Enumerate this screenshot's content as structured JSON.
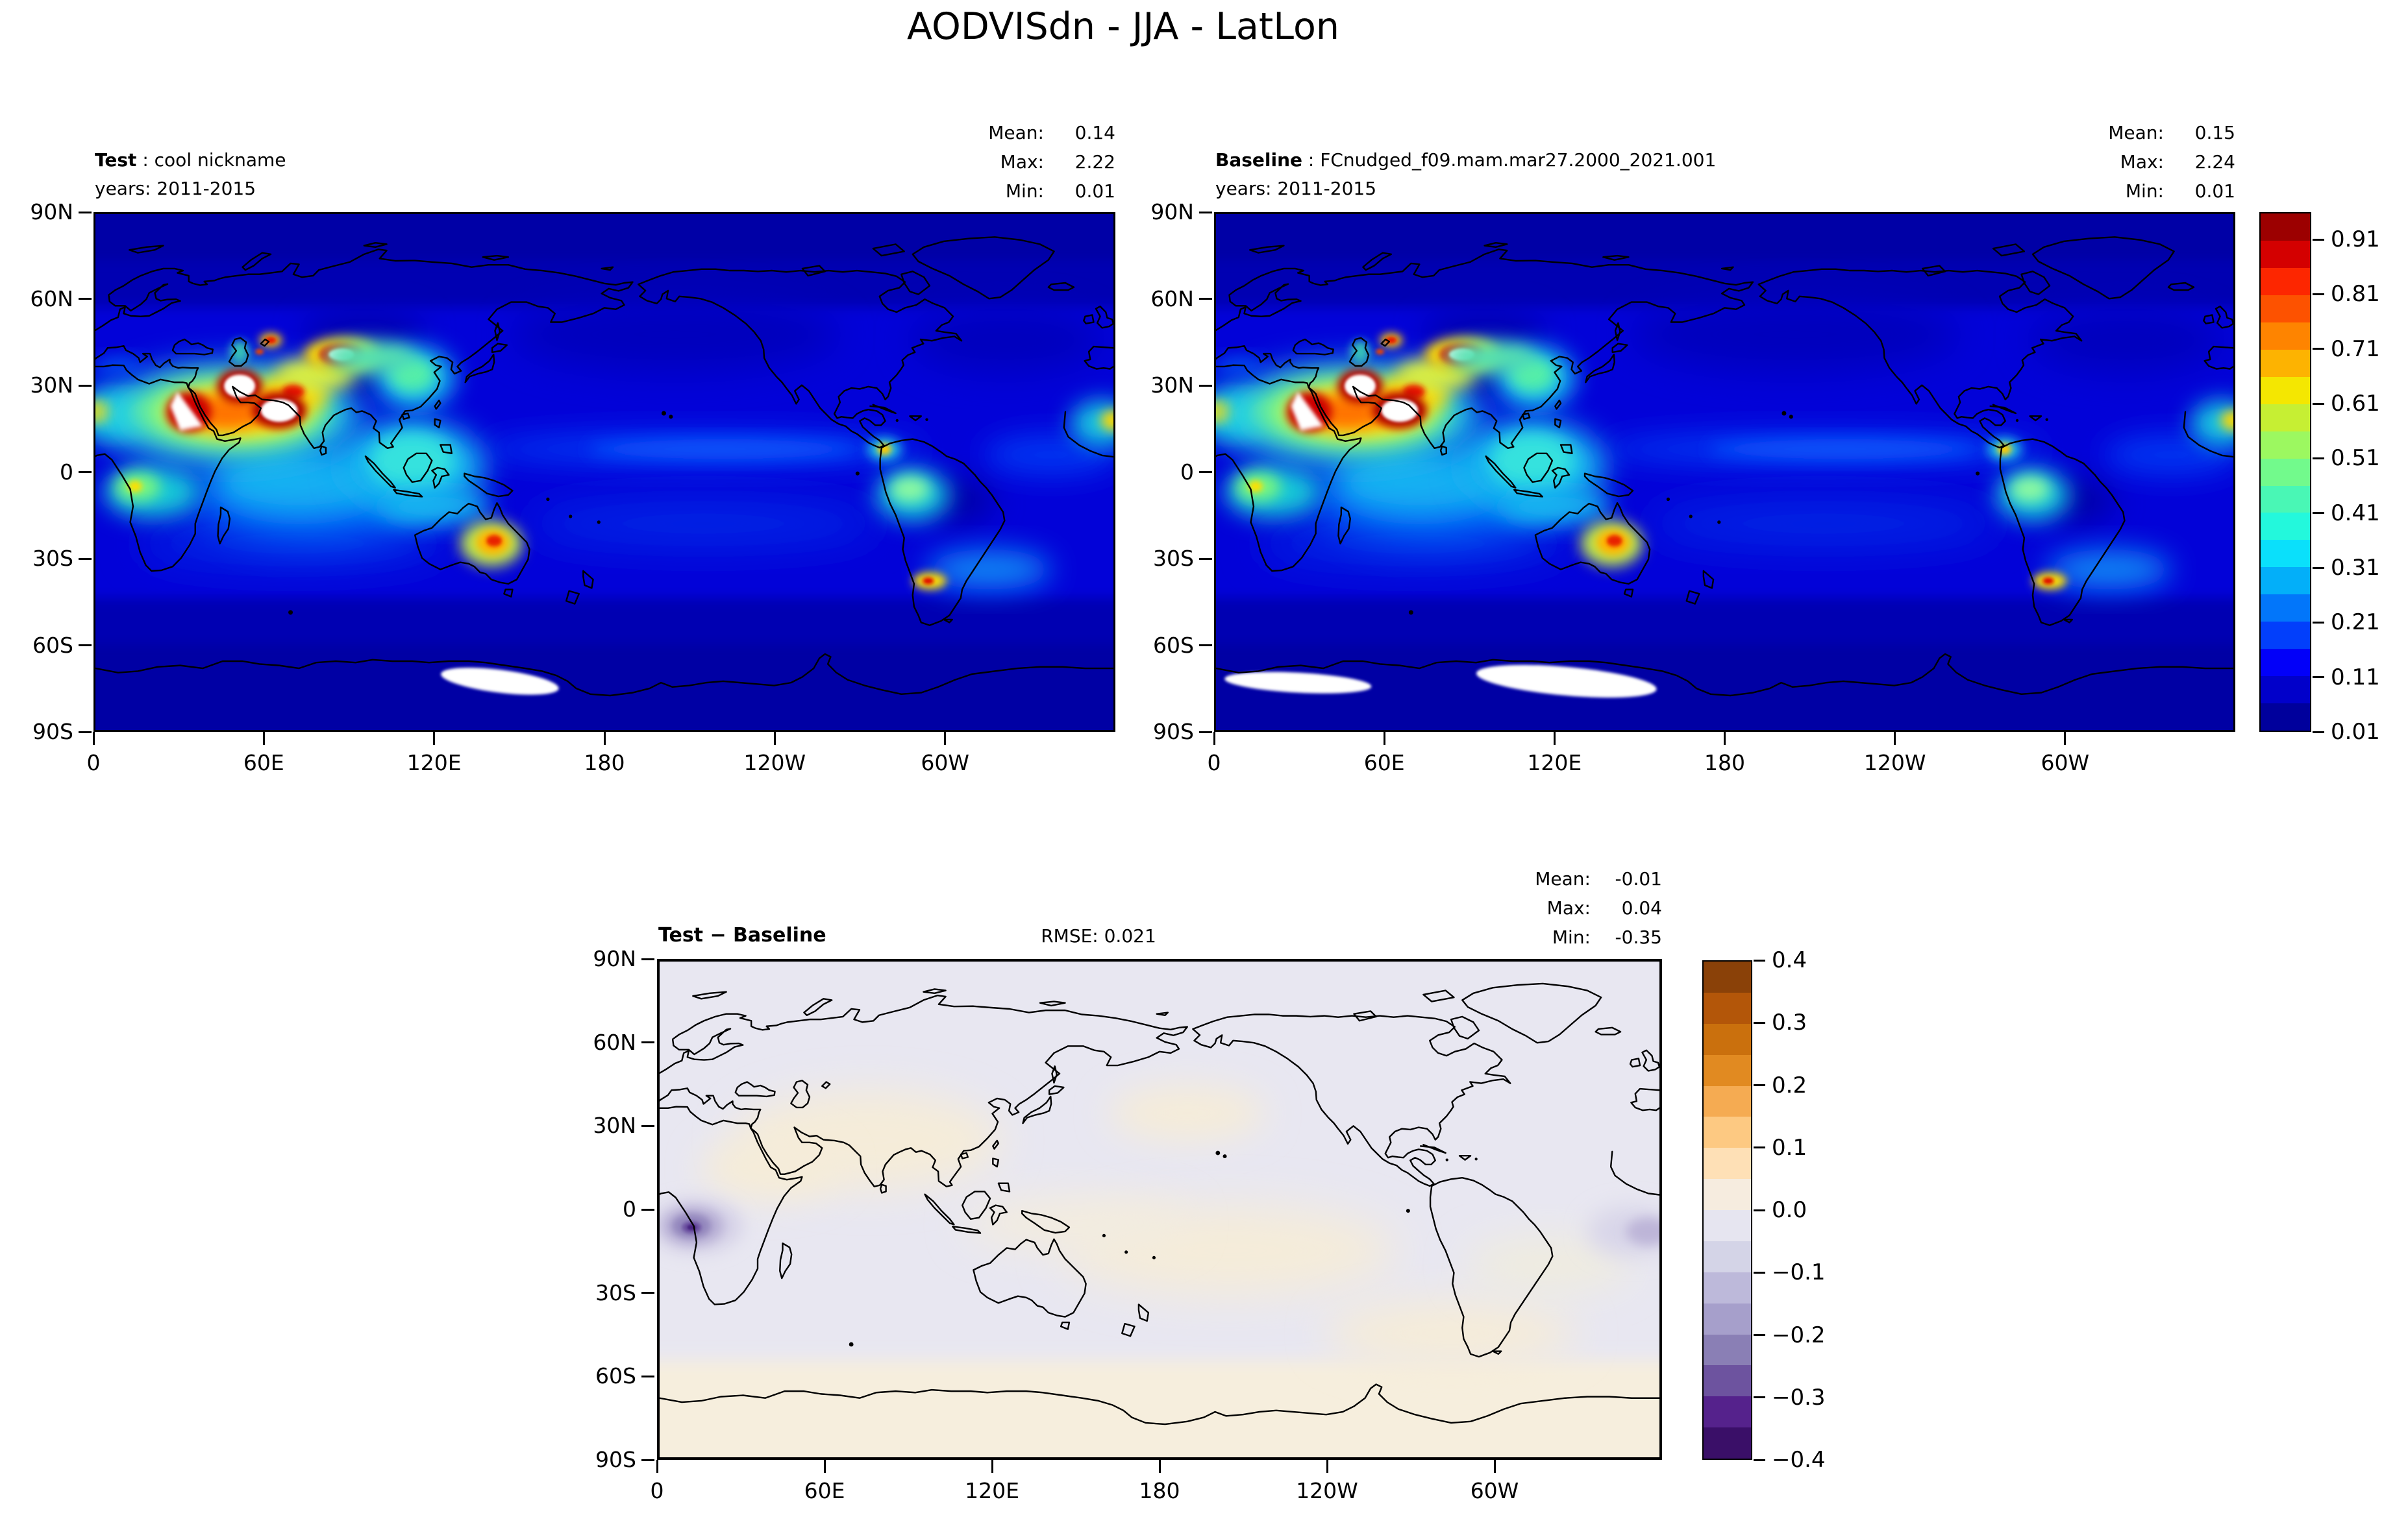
{
  "title": "AODVISdn - JJA - LatLon",
  "axis": {
    "lon_ticks": [
      "0",
      "60E",
      "120E",
      "180",
      "120W",
      "60W"
    ],
    "lat_ticks": [
      "90N",
      "60N",
      "30N",
      "0",
      "30S",
      "60S",
      "90S"
    ]
  },
  "panels": {
    "test": {
      "label": "Test",
      "sep": " : ",
      "name": "cool nickname",
      "years": "years: 2011-2015",
      "stats": [
        {
          "k": "Mean:",
          "v": "0.14"
        },
        {
          "k": "Max:",
          "v": "2.22"
        },
        {
          "k": "Min:",
          "v": "0.01"
        }
      ]
    },
    "baseline": {
      "label": "Baseline",
      "sep": " : ",
      "name": "FCnudged_f09.mam.mar27.2000_2021.001",
      "years": "years: 2011-2015",
      "stats": [
        {
          "k": "Mean:",
          "v": "0.15"
        },
        {
          "k": "Max:",
          "v": "2.24"
        },
        {
          "k": "Min:",
          "v": "0.01"
        }
      ]
    },
    "diff": {
      "label": "Test − Baseline",
      "rmse": "RMSE: 0.021",
      "stats": [
        {
          "k": "Mean:",
          "v": "-0.01"
        },
        {
          "k": "Max:",
          "v": "0.04"
        },
        {
          "k": "Min:",
          "v": "-0.35"
        }
      ]
    }
  },
  "colorbars": {
    "aod": {
      "ticks": [
        "0.91",
        "0.81",
        "0.71",
        "0.61",
        "0.51",
        "0.41",
        "0.31",
        "0.21",
        "0.11",
        "0.01"
      ],
      "colors_bottom_to_top": [
        "#00009c",
        "#0100ca",
        "#0200f9",
        "#023ffb",
        "#0276fa",
        "#03aff9",
        "#0ae0fb",
        "#23f8dc",
        "#49f7b5",
        "#72fa8c",
        "#9cf860",
        "#c6ef33",
        "#f4e701",
        "#fdb301",
        "#fe8400",
        "#fd5200",
        "#fd2600",
        "#d40000",
        "#9c0000"
      ]
    },
    "diff": {
      "ticks": [
        "0.4",
        "0.3",
        "0.2",
        "0.1",
        "0.0",
        "−0.1",
        "−0.2",
        "−0.3",
        "−0.4"
      ],
      "colors_bottom_to_top": [
        "#3a0f68",
        "#55228c",
        "#6d539f",
        "#8a7fb5",
        "#a69fcb",
        "#bdb9da",
        "#d4d4e7",
        "#e6e5f0",
        "#f6ecdf",
        "#fee0b6",
        "#fdc982",
        "#f5ab52",
        "#e18a21",
        "#ca700d",
        "#b35609",
        "#8a4108"
      ]
    }
  },
  "chart_data": {
    "type": "heatmap",
    "title": "AODVISdn - JJA - LatLon",
    "variable": "AODVISdn",
    "season": "JJA",
    "projection": "LatLon",
    "x": {
      "ticks": [
        "0",
        "60E",
        "120E",
        "180",
        "120W",
        "60W"
      ],
      "range_deg": [
        0,
        360
      ]
    },
    "y": {
      "ticks": [
        "90N",
        "60N",
        "30N",
        "0",
        "30S",
        "60S",
        "90S"
      ],
      "range_deg": [
        -90,
        90
      ]
    },
    "panels": [
      {
        "name": "Test",
        "case": "cool nickname",
        "years": "2011-2015",
        "mean": 0.14,
        "max": 2.22,
        "min": 0.01
      },
      {
        "name": "Baseline",
        "case": "FCnudged_f09.mam.mar27.2000_2021.001",
        "years": "2011-2015",
        "mean": 0.15,
        "max": 2.24,
        "min": 0.01
      },
      {
        "name": "Test − Baseline",
        "rmse": 0.021,
        "mean": -0.01,
        "max": 0.04,
        "min": -0.35
      }
    ],
    "colorbar_aod": {
      "range": [
        0.01,
        0.96
      ],
      "tick_values": [
        0.01,
        0.11,
        0.21,
        0.31,
        0.41,
        0.51,
        0.61,
        0.71,
        0.81,
        0.91
      ],
      "n_bands": 19
    },
    "colorbar_diff": {
      "range": [
        -0.4,
        0.4
      ],
      "tick_values": [
        -0.4,
        -0.3,
        -0.2,
        -0.1,
        0.0,
        0.1,
        0.2,
        0.3,
        0.4
      ],
      "n_bands": 16
    },
    "legend_position": "right",
    "grid": false
  }
}
